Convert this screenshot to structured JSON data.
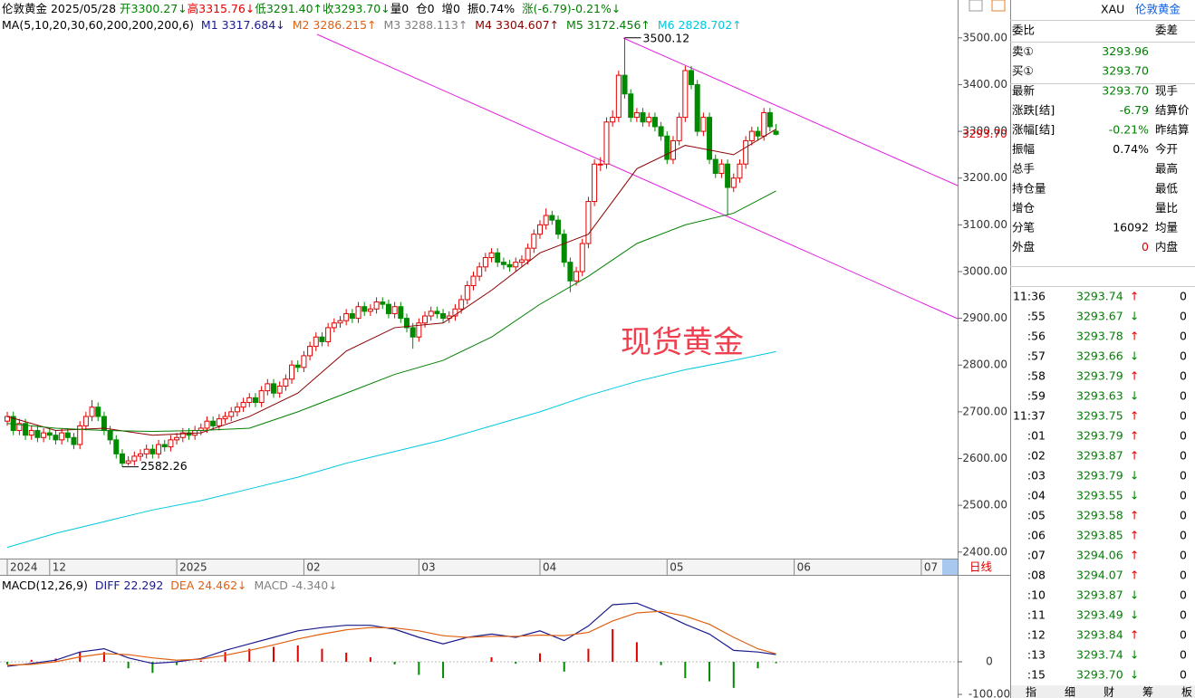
{
  "quote_header": [
    {
      "text": "伦敦黄金 2025/05/28 ",
      "color": "#000"
    },
    {
      "text": "开3300.27↓",
      "color": "#008000"
    },
    {
      "text": "高3315.76↓",
      "color": "#e00000"
    },
    {
      "text": "低3291.40↑",
      "color": "#008000"
    },
    {
      "text": "收3293.70↓",
      "color": "#008000"
    },
    {
      "text": "量0",
      "color": "#000"
    },
    {
      "text": "  仓0",
      "color": "#000"
    },
    {
      "text": "  增0",
      "color": "#000"
    },
    {
      "text": "  振0.74%",
      "color": "#000"
    },
    {
      "text": "  涨(-6.79)-0.21%↓",
      "color": "#008000"
    }
  ],
  "ma_legend": [
    {
      "text": "MA(5,10,20,30,60,200,200,200,6)",
      "color": "#000"
    },
    {
      "text": "  M1 3317.684↓",
      "color": "#1a1a8c"
    },
    {
      "text": "  M2 3286.215↑",
      "color": "#e06010"
    },
    {
      "text": "  M3 3288.113↑",
      "color": "#808080"
    },
    {
      "text": "  M4 3304.607↑",
      "color": "#8b0000"
    },
    {
      "text": "  M5 3172.456↑",
      "color": "#008000"
    },
    {
      "text": "  M6 2828.702↑",
      "color": "#00c8e0"
    }
  ],
  "chart_data": {
    "type": "candlestick",
    "up_color": "#e00000",
    "down_color": "#008a00",
    "open": [
      2680,
      2690,
      2660,
      2675,
      2650,
      2660,
      2645,
      2655,
      2650,
      2640,
      2655,
      2645,
      2630,
      2670,
      2690,
      2710,
      2690,
      2660,
      2640,
      2610,
      2590,
      2595,
      2605,
      2610,
      2620,
      2610,
      2630,
      2625,
      2640,
      2645,
      2655,
      2650,
      2660,
      2665,
      2680,
      2670,
      2685,
      2690,
      2700,
      2710,
      2720,
      2730,
      2720,
      2745,
      2760,
      2740,
      2755,
      2770,
      2800,
      2795,
      2820,
      2840,
      2860,
      2850,
      2880,
      2890,
      2895,
      2910,
      2900,
      2925,
      2915,
      2920,
      2935,
      2930,
      2910,
      2925,
      2900,
      2880,
      2860,
      2890,
      2905,
      2915,
      2910,
      2900,
      2905,
      2920,
      2940,
      2970,
      2990,
      3010,
      3030,
      3040,
      3020,
      3015,
      3010,
      3020,
      3025,
      3050,
      3080,
      3100,
      3120,
      3110,
      3080,
      3020,
      2980,
      3000,
      3060,
      3150,
      3230,
      3230,
      3320,
      3330,
      3420,
      3380,
      3330,
      3340,
      3320,
      3330,
      3310,
      3290,
      3240,
      3280,
      3330,
      3430,
      3400,
      3300,
      3330,
      3240,
      3210,
      3230,
      3180,
      3200,
      3230,
      3280,
      3300,
      3290,
      3340,
      3300.27
    ],
    "high": [
      2700,
      2700,
      2685,
      2685,
      2670,
      2670,
      2665,
      2665,
      2660,
      2665,
      2665,
      2655,
      2680,
      2700,
      2725,
      2720,
      2700,
      2670,
      2650,
      2620,
      2605,
      2615,
      2620,
      2630,
      2630,
      2640,
      2640,
      2650,
      2655,
      2665,
      2665,
      2670,
      2675,
      2690,
      2690,
      2695,
      2700,
      2710,
      2720,
      2730,
      2740,
      2740,
      2755,
      2770,
      2770,
      2765,
      2780,
      2810,
      2810,
      2830,
      2850,
      2870,
      2870,
      2890,
      2900,
      2905,
      2920,
      2920,
      2935,
      2935,
      2930,
      2945,
      2945,
      2940,
      2935,
      2935,
      2910,
      2890,
      2900,
      2915,
      2925,
      2925,
      2920,
      2915,
      2930,
      2950,
      2980,
      3000,
      3020,
      3040,
      3050,
      3050,
      3030,
      3025,
      3030,
      3035,
      3060,
      3090,
      3110,
      3135,
      3130,
      3120,
      3090,
      3030,
      3010,
      3070,
      3160,
      3240,
      3245,
      3330,
      3345,
      3430,
      3500.12,
      3390,
      3350,
      3350,
      3340,
      3340,
      3320,
      3300,
      3290,
      3340,
      3440,
      3440,
      3410,
      3340,
      3340,
      3250,
      3240,
      3240,
      3210,
      3240,
      3290,
      3310,
      3310,
      3350,
      3350,
      3315.76
    ],
    "low": [
      2670,
      2650,
      2650,
      2640,
      2640,
      2635,
      2635,
      2640,
      2630,
      2630,
      2635,
      2620,
      2620,
      2660,
      2680,
      2680,
      2650,
      2630,
      2600,
      2582.26,
      2585,
      2585,
      2595,
      2600,
      2600,
      2600,
      2615,
      2615,
      2630,
      2635,
      2640,
      2640,
      2650,
      2655,
      2660,
      2660,
      2675,
      2680,
      2690,
      2700,
      2710,
      2710,
      2710,
      2735,
      2730,
      2730,
      2745,
      2760,
      2785,
      2785,
      2810,
      2830,
      2840,
      2840,
      2870,
      2880,
      2885,
      2890,
      2890,
      2905,
      2905,
      2910,
      2920,
      2900,
      2900,
      2890,
      2870,
      2835,
      2850,
      2880,
      2895,
      2900,
      2890,
      2890,
      2895,
      2910,
      2930,
      2960,
      2980,
      3000,
      3020,
      3010,
      3005,
      3000,
      3000,
      3010,
      3015,
      3040,
      3070,
      3090,
      3100,
      3070,
      3010,
      2956,
      2970,
      2990,
      3050,
      3140,
      3215,
      3220,
      3310,
      3320,
      3370,
      3320,
      3320,
      3310,
      3310,
      3300,
      3280,
      3230,
      3230,
      3270,
      3320,
      3390,
      3290,
      3290,
      3230,
      3200,
      3200,
      3120,
      3170,
      3190,
      3220,
      3270,
      3280,
      3280,
      3300,
      3291.4
    ],
    "close": [
      2690,
      2660,
      2675,
      2650,
      2660,
      2645,
      2655,
      2650,
      2640,
      2655,
      2645,
      2630,
      2670,
      2690,
      2710,
      2690,
      2660,
      2640,
      2610,
      2590,
      2595,
      2605,
      2610,
      2620,
      2610,
      2630,
      2625,
      2640,
      2645,
      2655,
      2650,
      2660,
      2665,
      2680,
      2670,
      2685,
      2690,
      2700,
      2710,
      2720,
      2730,
      2720,
      2745,
      2760,
      2740,
      2755,
      2770,
      2800,
      2795,
      2820,
      2840,
      2860,
      2850,
      2880,
      2890,
      2895,
      2910,
      2900,
      2925,
      2915,
      2920,
      2935,
      2930,
      2910,
      2925,
      2900,
      2880,
      2860,
      2890,
      2905,
      2915,
      2910,
      2900,
      2905,
      2920,
      2940,
      2970,
      2990,
      3010,
      3030,
      3040,
      3020,
      3015,
      3010,
      3020,
      3025,
      3050,
      3080,
      3100,
      3120,
      3110,
      3080,
      3020,
      2980,
      3000,
      3060,
      3150,
      3230,
      3230,
      3320,
      3330,
      3420,
      3380,
      3330,
      3340,
      3320,
      3330,
      3310,
      3290,
      3240,
      3280,
      3330,
      3430,
      3400,
      3300,
      3330,
      3240,
      3210,
      3230,
      3180,
      3200,
      3230,
      3280,
      3300,
      3290,
      3340,
      3310,
      3293.7
    ],
    "xlim": [
      -1.2,
      157
    ],
    "ylim": [
      2386,
      3581
    ],
    "yticks": [
      {
        "value": 3500,
        "label": "3500.00"
      },
      {
        "value": 3400,
        "label": "3400.00"
      },
      {
        "value": 3300,
        "label": "3300.00"
      },
      {
        "value": 3200,
        "label": "3200.00"
      },
      {
        "value": 3100,
        "label": "3100.00"
      },
      {
        "value": 3000,
        "label": "3000.00"
      },
      {
        "value": 2900,
        "label": "2900.00"
      },
      {
        "value": 2800,
        "label": "2800.00"
      },
      {
        "value": 2700,
        "label": "2700.00"
      },
      {
        "value": 2600,
        "label": "2600.00"
      },
      {
        "value": 2500,
        "label": "2500.00"
      },
      {
        "value": 2400,
        "label": "2400.00"
      }
    ],
    "xticks": [
      {
        "value": 0,
        "label": "2024"
      },
      {
        "value": 7,
        "label": "12"
      },
      {
        "value": 28,
        "label": "2025"
      },
      {
        "value": 49,
        "label": "02"
      },
      {
        "value": 68,
        "label": "03"
      },
      {
        "value": 88,
        "label": "04"
      },
      {
        "value": 109,
        "label": "05"
      },
      {
        "value": 130,
        "label": "06"
      },
      {
        "value": 151,
        "label": "07"
      }
    ],
    "last_price_label": "3293.70",
    "high_label": "3500.12",
    "low_label": "2582.26",
    "title_overlay": "现货黄金",
    "period_label": "日线",
    "ma_lines": [
      {
        "color": "#8b0000",
        "x": [
          0,
          8,
          16,
          24,
          32,
          40,
          48,
          56,
          64,
          72,
          80,
          88,
          96,
          104,
          112,
          120,
          127
        ],
        "values": [
          2690,
          2660,
          2665,
          2650,
          2655,
          2690,
          2740,
          2830,
          2880,
          2890,
          2960,
          3040,
          3080,
          3220,
          3270,
          3250,
          3304.607
        ]
      },
      {
        "color": "#008000",
        "x": [
          0,
          8,
          16,
          24,
          32,
          40,
          48,
          56,
          64,
          72,
          80,
          88,
          96,
          104,
          112,
          120,
          127
        ],
        "values": [
          2675,
          2665,
          2660,
          2658,
          2660,
          2665,
          2700,
          2740,
          2780,
          2810,
          2860,
          2930,
          2990,
          3060,
          3100,
          3125,
          3172.456
        ]
      },
      {
        "color": "#00c8e0",
        "x": [
          0,
          8,
          16,
          24,
          32,
          40,
          48,
          56,
          64,
          72,
          80,
          88,
          96,
          104,
          112,
          120,
          127
        ],
        "values": [
          2410,
          2440,
          2465,
          2490,
          2510,
          2535,
          2560,
          2590,
          2615,
          2640,
          2670,
          2700,
          2735,
          2765,
          2790,
          2810,
          2828.702
        ]
      }
    ],
    "macd": {
      "legend": [
        {
          "text": "MACD(12,26,9)",
          "color": "#000"
        },
        {
          "text": "  DIFF 22.292",
          "color": "#1a1a8c"
        },
        {
          "text": "  DEA 24.462↓",
          "color": "#e06010"
        },
        {
          "text": "  MACD -4.340↓",
          "color": "#808080"
        }
      ],
      "diff_color": "#1a1a8c",
      "dea_color": "#e06010",
      "up_color": "#e00000",
      "down_color": "#008a00",
      "x": [
        0,
        4,
        8,
        12,
        16,
        20,
        24,
        28,
        32,
        36,
        40,
        44,
        48,
        52,
        56,
        60,
        64,
        68,
        72,
        76,
        80,
        84,
        88,
        92,
        96,
        100,
        104,
        108,
        112,
        116,
        120,
        124,
        127
      ],
      "diff": [
        -14,
        -5,
        5,
        30,
        40,
        12,
        -5,
        0,
        10,
        35,
        55,
        75,
        95,
        105,
        112,
        112,
        100,
        75,
        55,
        75,
        85,
        75,
        95,
        65,
        110,
        175,
        180,
        150,
        115,
        85,
        35,
        30,
        22.292
      ],
      "dea": [
        -10,
        -8,
        0,
        15,
        25,
        22,
        12,
        5,
        8,
        20,
        35,
        52,
        70,
        85,
        98,
        105,
        104,
        95,
        80,
        75,
        78,
        78,
        82,
        80,
        90,
        125,
        150,
        155,
        140,
        115,
        75,
        40,
        24.462
      ],
      "hist": [
        -8,
        6,
        10,
        30,
        30,
        -20,
        -34,
        -10,
        4,
        30,
        40,
        46,
        50,
        40,
        28,
        14,
        -8,
        -40,
        -50,
        0,
        14,
        -6,
        26,
        -30,
        40,
        100,
        60,
        -10,
        -50,
        -60,
        -80,
        -20,
        -4.34
      ],
      "ylim": [
        -111,
        261
      ],
      "yticks": [
        0,
        {
          "value": -100,
          "label": "-100.00"
        }
      ]
    }
  },
  "quote_panel": {
    "symbol": "XAU",
    "name": "伦敦黄金",
    "rows": [
      {
        "label": "委比",
        "label2": "委差"
      },
      {
        "label": "卖①",
        "value": "3293.96",
        "color": "#008000"
      },
      {
        "label": "买①",
        "value": "3293.70",
        "color": "#008000"
      },
      {
        "label": "最新",
        "value": "3293.70",
        "label2": "现手",
        "color": "#008000"
      },
      {
        "label": "涨跌[结]",
        "value": "-6.79",
        "label2": "结算价",
        "color": "#008000"
      },
      {
        "label": "涨幅[结]",
        "value": "-0.21%",
        "label2": "昨结算",
        "color": "#008000"
      },
      {
        "label": "振幅",
        "value": "0.74%",
        "label2": "今开",
        "color": "#000"
      },
      {
        "label": "总手",
        "label2": "最高"
      },
      {
        "label": "持仓量",
        "label2": "最低"
      },
      {
        "label": "增仓",
        "label2": "量比"
      },
      {
        "label": "分笔",
        "value": "16092",
        "label2": "均量",
        "color": "#000"
      },
      {
        "label": "外盘",
        "value": "0",
        "label2": "内盘",
        "color": "#e00000"
      }
    ],
    "ticks": [
      {
        "time": "11:36",
        "price": "3293.74",
        "arrow": "↑",
        "vol": 0
      },
      {
        "time": ":55",
        "price": "3293.67",
        "arrow": "↓",
        "vol": 0
      },
      {
        "time": ":56",
        "price": "3293.78",
        "arrow": "↑",
        "vol": 0
      },
      {
        "time": ":57",
        "price": "3293.66",
        "arrow": "↓",
        "vol": 0
      },
      {
        "time": ":58",
        "price": "3293.79",
        "arrow": "↑",
        "vol": 0
      },
      {
        "time": ":59",
        "price": "3293.63",
        "arrow": "↓",
        "vol": 0
      },
      {
        "time": "11:37",
        "price": "3293.75",
        "arrow": "↑",
        "vol": 0
      },
      {
        "time": ":01",
        "price": "3293.79",
        "arrow": "↑",
        "vol": 0
      },
      {
        "time": ":02",
        "price": "3293.87",
        "arrow": "↑",
        "vol": 0
      },
      {
        "time": ":03",
        "price": "3293.79",
        "arrow": "↓",
        "vol": 0
      },
      {
        "time": ":04",
        "price": "3293.55",
        "arrow": "↓",
        "vol": 0
      },
      {
        "time": ":05",
        "price": "3293.58",
        "arrow": "↑",
        "vol": 0
      },
      {
        "time": ":06",
        "price": "3293.85",
        "arrow": "↑",
        "vol": 0
      },
      {
        "time": ":07",
        "price": "3294.06",
        "arrow": "↑",
        "vol": 0
      },
      {
        "time": ":08",
        "price": "3294.07",
        "arrow": "↑",
        "vol": 0
      },
      {
        "time": ":10",
        "price": "3293.87",
        "arrow": "↓",
        "vol": 0
      },
      {
        "time": ":11",
        "price": "3293.49",
        "arrow": "↓",
        "vol": 0
      },
      {
        "time": ":12",
        "price": "3293.84",
        "arrow": "↑",
        "vol": 0
      },
      {
        "time": ":13",
        "price": "3293.74",
        "arrow": "↓",
        "vol": 0
      },
      {
        "time": ":15",
        "price": "3293.70",
        "arrow": "↓",
        "vol": 0
      }
    ]
  },
  "tabs": [
    "指",
    "细",
    "财",
    "筹",
    "板"
  ]
}
